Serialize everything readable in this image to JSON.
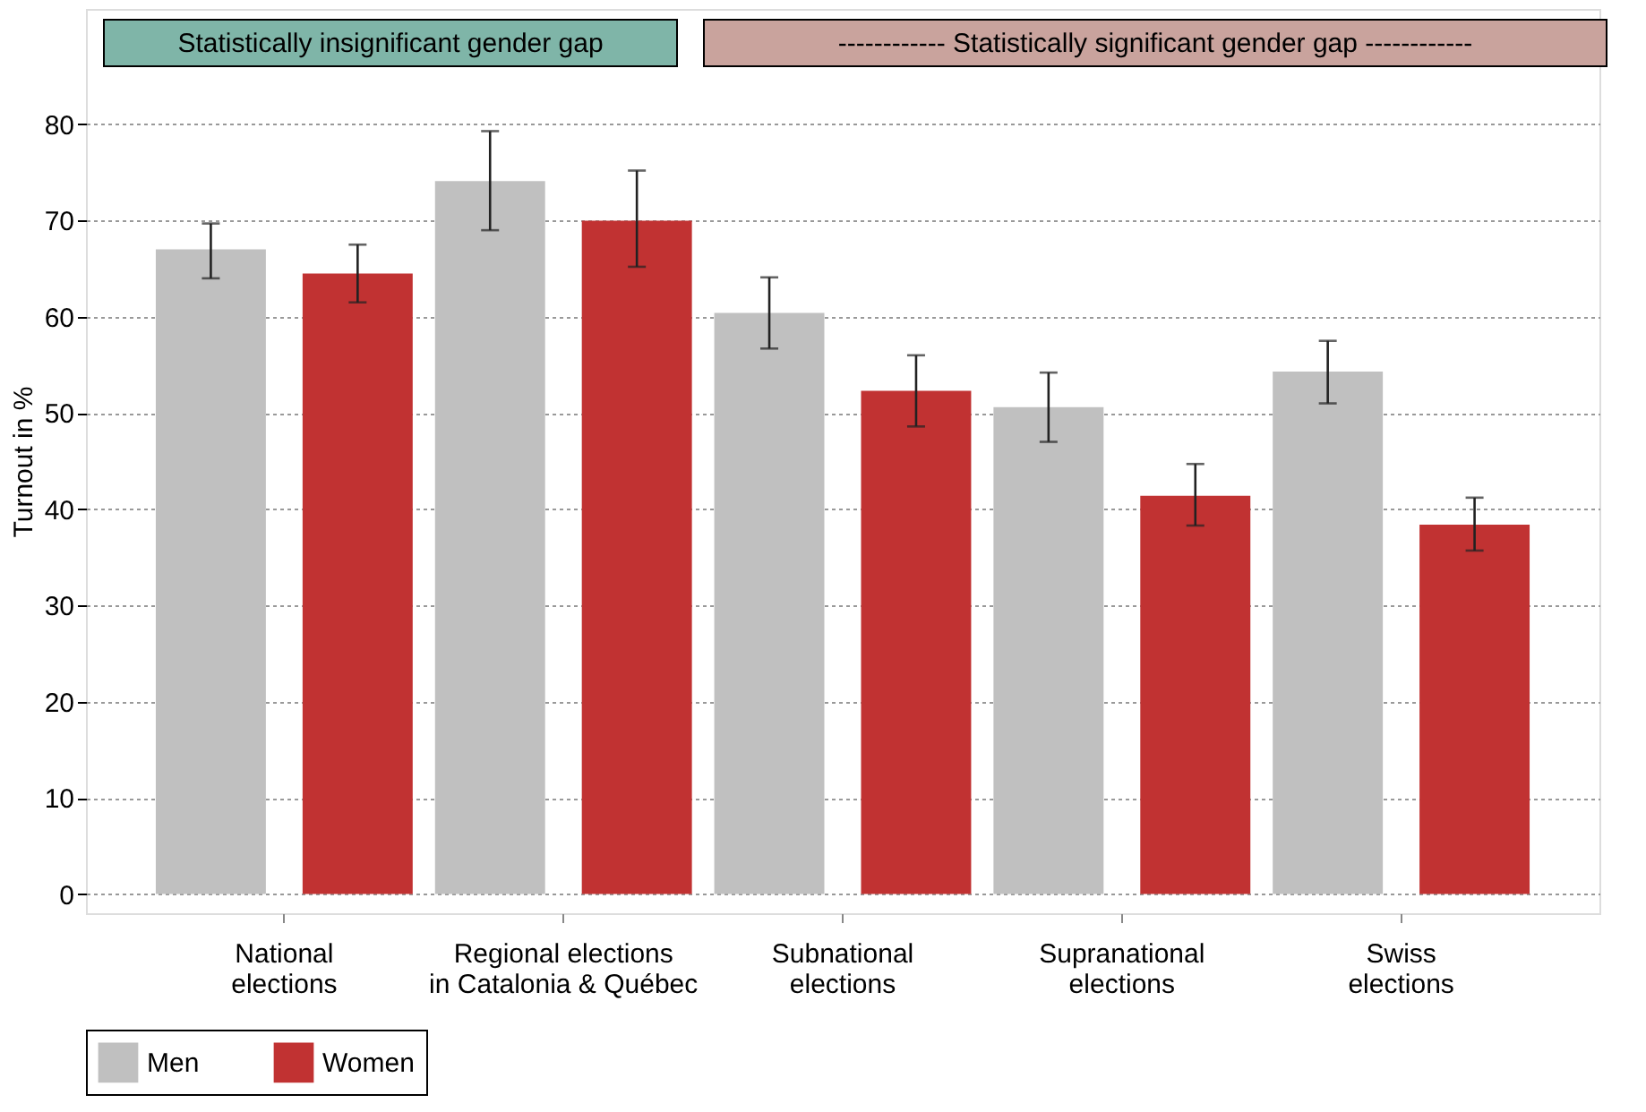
{
  "chart_data": {
    "type": "bar",
    "ylabel": "Turnout in %",
    "categories": [
      "National elections",
      "Regional elections in Catalonia & Québec",
      "Subnational elections",
      "Supranational elections",
      "Swiss elections"
    ],
    "series": [
      {
        "name": "Men",
        "color": "#c0c0c0",
        "values": [
          67,
          74.1,
          60.4,
          50.6,
          54.3
        ],
        "errors": [
          [
            64,
            69.7
          ],
          [
            69,
            79.3
          ],
          [
            56.7,
            64.1
          ],
          [
            47,
            54.2
          ],
          [
            51,
            57.5
          ]
        ]
      },
      {
        "name": "Women",
        "color": "#c13232",
        "values": [
          64.5,
          70,
          52.3,
          41.4,
          38.4
        ],
        "errors": [
          [
            61.5,
            67.5
          ],
          [
            65.2,
            75.2
          ],
          [
            48.6,
            56
          ],
          [
            38.3,
            44.7
          ],
          [
            35.7,
            41.2
          ]
        ]
      }
    ],
    "ylim": [
      -2,
      92
    ],
    "yticks": [
      0,
      10,
      20,
      30,
      40,
      50,
      60,
      70,
      80
    ],
    "grid": "y",
    "legend": "bottom",
    "annotations": [
      "Statistically insignificant gender gap",
      "------------ Statistically significant gender gap ------------"
    ]
  }
}
